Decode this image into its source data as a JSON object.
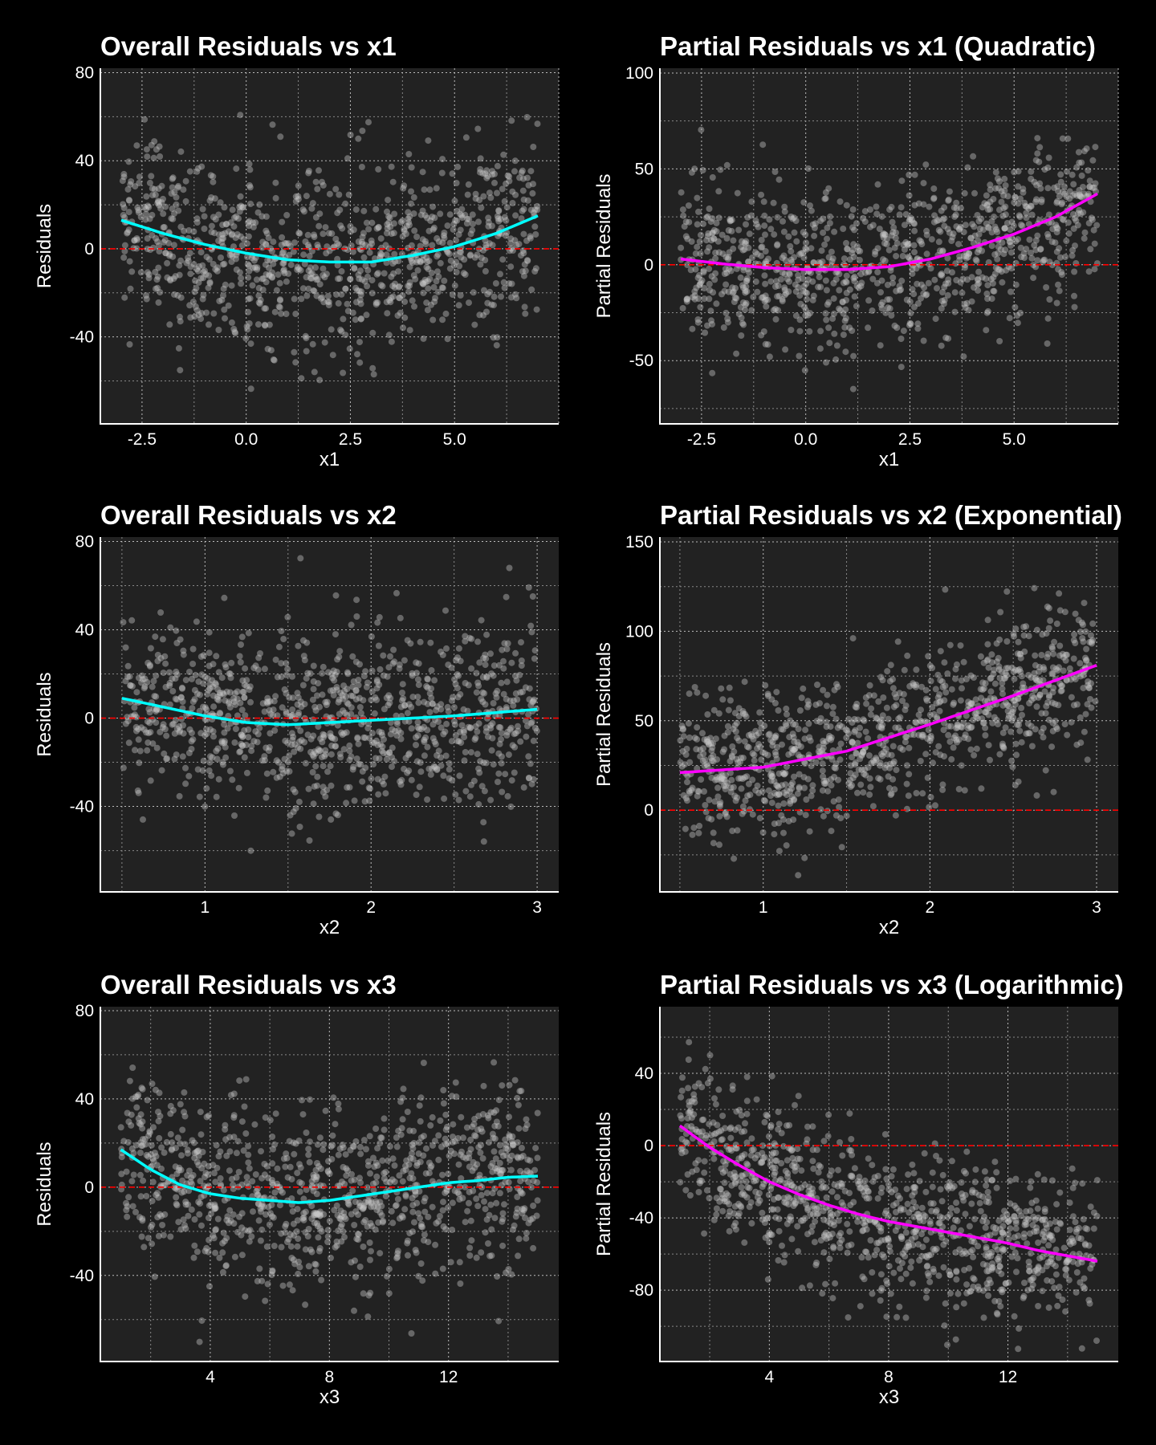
{
  "chart_data": [
    {
      "type": "scatter",
      "title": "Overall Residuals vs x1",
      "xlabel": "x1",
      "ylabel": "Residuals",
      "xlim": [
        -3.5,
        7.5
      ],
      "ylim": [
        -79.5,
        82
      ],
      "xticks": [
        -2.5,
        0.0,
        2.5,
        5.0
      ],
      "xtick_labels": [
        "-2.5",
        "0.0",
        "2.5",
        "5.0"
      ],
      "yticks": [
        80,
        40,
        0,
        -40
      ],
      "ytick_labels": [
        "80",
        "40",
        "0",
        "-40"
      ],
      "grid": true,
      "reference_line": 0,
      "point_color": "#c8c8c8",
      "curve_color": "#00ffff",
      "reference_color": "#ff0000",
      "curve": {
        "x": [
          -3,
          -2,
          -1,
          0,
          1,
          2,
          3,
          4,
          5,
          6,
          7
        ],
        "y": [
          13,
          7,
          2,
          -2,
          -5,
          -6,
          -6,
          -3,
          1,
          7,
          15
        ]
      },
      "x_range": [
        -3,
        7
      ]
    },
    {
      "type": "scatter",
      "title": "Partial Residuals vs x1 (Quadratic)",
      "xlabel": "x1",
      "ylabel": "Partial Residuals",
      "xlim": [
        -3.5,
        7.5
      ],
      "ylim": [
        -83,
        102.5
      ],
      "xticks": [
        -2.5,
        0.0,
        2.5,
        5.0
      ],
      "xtick_labels": [
        "-2.5",
        "0.0",
        "2.5",
        "5.0"
      ],
      "yticks": [
        100,
        50,
        0,
        -50
      ],
      "ytick_labels": [
        "100",
        "50",
        "0",
        "-50"
      ],
      "grid": true,
      "reference_line": 0,
      "point_color": "#c8c8c8",
      "curve_color": "#ff00ff",
      "reference_color": "#ff0000",
      "curve": {
        "x": [
          -3,
          -2,
          -1,
          0,
          1,
          2,
          3,
          4,
          5,
          6,
          7
        ],
        "y": [
          3,
          0.5,
          -1.5,
          -2.5,
          -2.5,
          -1,
          3,
          9,
          16,
          25,
          37
        ]
      },
      "x_range": [
        -3,
        7
      ]
    },
    {
      "type": "scatter",
      "title": "Overall Residuals vs x2",
      "xlabel": "x2",
      "ylabel": "Residuals",
      "xlim": [
        0.37,
        3.13
      ],
      "ylim": [
        -78.7,
        82
      ],
      "xticks": [
        1,
        2,
        3
      ],
      "xtick_labels": [
        "1",
        "2",
        "3"
      ],
      "yticks": [
        80,
        40,
        0,
        -40
      ],
      "ytick_labels": [
        "80",
        "40",
        "0",
        "-40"
      ],
      "grid": true,
      "reference_line": 0,
      "point_color": "#c8c8c8",
      "curve_color": "#00ffff",
      "reference_color": "#ff0000",
      "curve": {
        "x": [
          0.5,
          0.75,
          1,
          1.25,
          1.5,
          1.75,
          2,
          2.25,
          2.5,
          2.75,
          3
        ],
        "y": [
          9,
          5,
          1,
          -2,
          -3,
          -2,
          -1,
          0,
          1,
          2.5,
          4
        ]
      },
      "x_range": [
        0.5,
        3
      ]
    },
    {
      "type": "scatter",
      "title": "Partial Residuals vs x2 (Exponential)",
      "xlabel": "x2",
      "ylabel": "Partial Residuals",
      "xlim": [
        0.38,
        3.13
      ],
      "ylim": [
        -45.7,
        152.7
      ],
      "xticks": [
        1,
        2,
        3
      ],
      "xtick_labels": [
        "1",
        "2",
        "3"
      ],
      "yticks": [
        150,
        100,
        50,
        0
      ],
      "ytick_labels": [
        "150",
        "100",
        "50",
        "0"
      ],
      "grid": true,
      "reference_line": 0,
      "point_color": "#c8c8c8",
      "curve_color": "#ff00ff",
      "reference_color": "#ff0000",
      "curve": {
        "x": [
          0.5,
          1,
          1.5,
          2,
          2.5,
          3
        ],
        "y": [
          21,
          24,
          33,
          48,
          64,
          81
        ]
      },
      "x_range": [
        0.5,
        3
      ]
    },
    {
      "type": "scatter",
      "title": "Overall Residuals vs x3",
      "xlabel": "x3",
      "ylabel": "Residuals",
      "xlim": [
        0.31,
        15.7
      ],
      "ylim": [
        -79,
        81.8
      ],
      "xticks": [
        4,
        8,
        12
      ],
      "xtick_labels": [
        "4",
        "8",
        "12"
      ],
      "yticks": [
        80,
        40,
        0,
        -40
      ],
      "ytick_labels": [
        "80",
        "40",
        "0",
        "-40"
      ],
      "grid": true,
      "reference_line": 0,
      "point_color": "#c8c8c8",
      "curve_color": "#00ffff",
      "reference_color": "#ff0000",
      "curve": {
        "x": [
          1,
          2,
          3,
          4,
          5,
          6,
          7,
          8,
          9,
          10,
          11,
          12,
          13,
          14,
          15
        ],
        "y": [
          17,
          8,
          1,
          -3,
          -5,
          -6,
          -7,
          -6,
          -4,
          -2,
          0,
          2,
          3,
          4.5,
          5
        ]
      },
      "x_range": [
        1,
        15
      ]
    },
    {
      "type": "scatter",
      "title": "Partial Residuals vs x3 (Logarithmic)",
      "xlabel": "x3",
      "ylabel": "Partial Residuals",
      "xlim": [
        0.33,
        15.7
      ],
      "ylim": [
        -119.5,
        76.9
      ],
      "xticks": [
        4,
        8,
        12
      ],
      "xtick_labels": [
        "4",
        "8",
        "12"
      ],
      "yticks": [
        40,
        0,
        -40,
        -80
      ],
      "ytick_labels": [
        "40",
        "0",
        "-40",
        "-80"
      ],
      "grid": true,
      "reference_line": 0,
      "point_color": "#c8c8c8",
      "curve_color": "#ff00ff",
      "reference_color": "#ff0000",
      "curve": {
        "x": [
          1,
          2,
          3,
          4,
          5,
          6,
          7,
          8,
          9,
          10,
          11,
          12,
          13,
          14,
          15
        ],
        "y": [
          11,
          -1,
          -11,
          -20,
          -27,
          -33,
          -38,
          -42,
          -45,
          -48,
          -51,
          -54,
          -58,
          -61,
          -64
        ]
      },
      "x_range": [
        1,
        15
      ]
    }
  ]
}
